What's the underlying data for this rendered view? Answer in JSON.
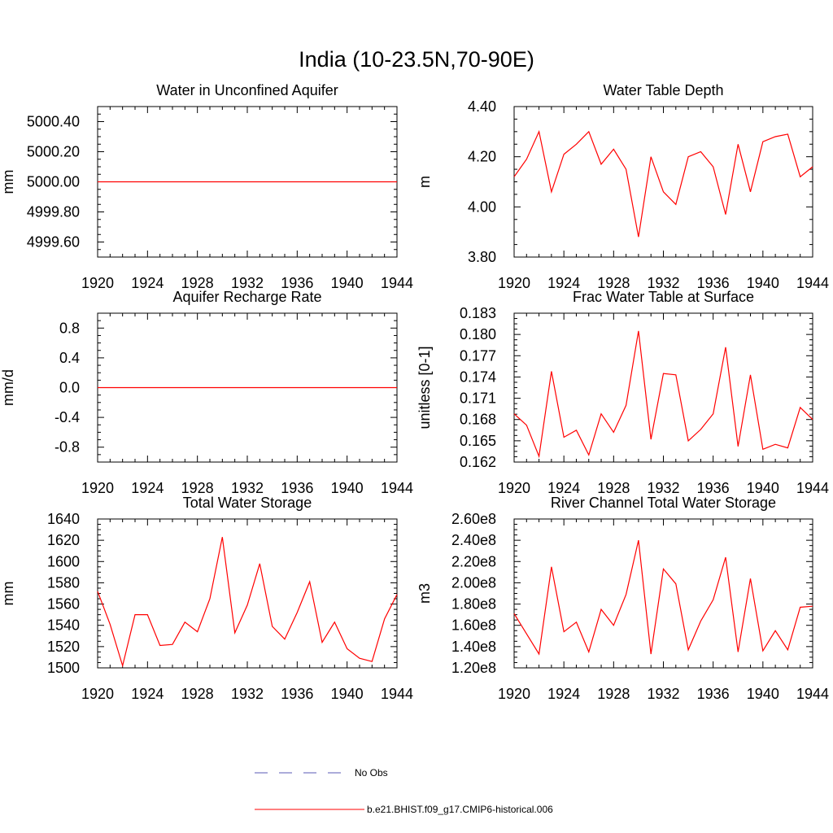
{
  "figure_title": "India (10-23.5N,70-90E)",
  "series_color": "#ff0000",
  "obs_color": "#5a5ab4",
  "legend": {
    "obs_label": "No Obs",
    "model_label": "b.e21.BHIST.f09_g17.CMIP6-historical.006"
  },
  "chart_data": [
    {
      "type": "line",
      "title": "Water in Unconfined Aquifer",
      "ylabel": "mm",
      "xlim": [
        1920,
        1944
      ],
      "ylim": [
        4999.5,
        5000.5
      ],
      "xticks": [
        "1920",
        "1924",
        "1928",
        "1932",
        "1936",
        "1940",
        "1944"
      ],
      "yticks": [
        "4999.60",
        "4999.80",
        "5000.00",
        "5000.20",
        "5000.40"
      ],
      "x": [
        1920,
        1921,
        1922,
        1923,
        1924,
        1925,
        1926,
        1927,
        1928,
        1929,
        1930,
        1931,
        1932,
        1933,
        1934,
        1935,
        1936,
        1937,
        1938,
        1939,
        1940,
        1941,
        1942,
        1943,
        1944
      ],
      "series": [
        {
          "name": "b.e21.BHIST.f09_g17.CMIP6-historical.006",
          "values": [
            5000,
            5000,
            5000,
            5000,
            5000,
            5000,
            5000,
            5000,
            5000,
            5000,
            5000,
            5000,
            5000,
            5000,
            5000,
            5000,
            5000,
            5000,
            5000,
            5000,
            5000,
            5000,
            5000,
            5000,
            5000
          ]
        }
      ]
    },
    {
      "type": "line",
      "title": "Water Table Depth",
      "ylabel": "m",
      "xlim": [
        1920,
        1944
      ],
      "ylim": [
        3.8,
        4.4
      ],
      "xticks": [
        "1920",
        "1924",
        "1928",
        "1932",
        "1936",
        "1940",
        "1944"
      ],
      "yticks": [
        "3.80",
        "4.00",
        "4.20",
        "4.40"
      ],
      "x": [
        1920,
        1921,
        1922,
        1923,
        1924,
        1925,
        1926,
        1927,
        1928,
        1929,
        1930,
        1931,
        1932,
        1933,
        1934,
        1935,
        1936,
        1937,
        1938,
        1939,
        1940,
        1941,
        1942,
        1943,
        1944
      ],
      "series": [
        {
          "name": "b.e21.BHIST.f09_g17.CMIP6-historical.006",
          "values": [
            4.12,
            4.19,
            4.3,
            4.06,
            4.21,
            4.25,
            4.3,
            4.17,
            4.23,
            4.15,
            3.88,
            4.2,
            4.06,
            4.01,
            4.2,
            4.22,
            4.16,
            3.97,
            4.25,
            4.06,
            4.26,
            4.28,
            4.29,
            4.12,
            4.16
          ]
        }
      ]
    },
    {
      "type": "line",
      "title": "Aquifer Recharge Rate",
      "ylabel": "mm/d",
      "xlim": [
        1920,
        1944
      ],
      "ylim": [
        -1.0,
        1.0
      ],
      "xticks": [
        "1920",
        "1924",
        "1928",
        "1932",
        "1936",
        "1940",
        "1944"
      ],
      "yticks": [
        "-0.8",
        "-0.4",
        "0.0",
        "0.4",
        "0.8"
      ],
      "x": [
        1920,
        1921,
        1922,
        1923,
        1924,
        1925,
        1926,
        1927,
        1928,
        1929,
        1930,
        1931,
        1932,
        1933,
        1934,
        1935,
        1936,
        1937,
        1938,
        1939,
        1940,
        1941,
        1942,
        1943,
        1944
      ],
      "series": [
        {
          "name": "b.e21.BHIST.f09_g17.CMIP6-historical.006",
          "values": [
            0,
            0,
            0,
            0,
            0,
            0,
            0,
            0,
            0,
            0,
            0,
            0,
            0,
            0,
            0,
            0,
            0,
            0,
            0,
            0,
            0,
            0,
            0,
            0,
            0
          ]
        }
      ]
    },
    {
      "type": "line",
      "title": "Frac Water Table at Surface",
      "ylabel": "unitless [0-1]",
      "xlim": [
        1920,
        1944
      ],
      "ylim": [
        0.162,
        0.183
      ],
      "xticks": [
        "1920",
        "1924",
        "1928",
        "1932",
        "1936",
        "1940",
        "1944"
      ],
      "yticks": [
        "0.162",
        "0.165",
        "0.168",
        "0.171",
        "0.174",
        "0.177",
        "0.180",
        "0.183"
      ],
      "x": [
        1920,
        1921,
        1922,
        1923,
        1924,
        1925,
        1926,
        1927,
        1928,
        1929,
        1930,
        1931,
        1932,
        1933,
        1934,
        1935,
        1936,
        1937,
        1938,
        1939,
        1940,
        1941,
        1942,
        1943,
        1944
      ],
      "series": [
        {
          "name": "b.e21.BHIST.f09_g17.CMIP6-historical.006",
          "values": [
            0.1688,
            0.1672,
            0.1628,
            0.1748,
            0.1655,
            0.1665,
            0.163,
            0.1688,
            0.1662,
            0.17,
            0.1805,
            0.1652,
            0.1745,
            0.1743,
            0.165,
            0.1666,
            0.1688,
            0.1782,
            0.1642,
            0.1743,
            0.1638,
            0.1645,
            0.164,
            0.1697,
            0.168
          ]
        }
      ]
    },
    {
      "type": "line",
      "title": "Total Water Storage",
      "ylabel": "mm",
      "xlim": [
        1920,
        1944
      ],
      "ylim": [
        1500,
        1640
      ],
      "xticks": [
        "1920",
        "1924",
        "1928",
        "1932",
        "1936",
        "1940",
        "1944"
      ],
      "yticks": [
        "1500",
        "1520",
        "1540",
        "1560",
        "1580",
        "1600",
        "1620",
        "1640"
      ],
      "x": [
        1920,
        1921,
        1922,
        1923,
        1924,
        1925,
        1926,
        1927,
        1928,
        1929,
        1930,
        1931,
        1932,
        1933,
        1934,
        1935,
        1936,
        1937,
        1938,
        1939,
        1940,
        1941,
        1942,
        1943,
        1944
      ],
      "series": [
        {
          "name": "b.e21.BHIST.f09_g17.CMIP6-historical.006",
          "values": [
            1572,
            1541,
            1502,
            1550,
            1550,
            1521,
            1522,
            1543,
            1534,
            1565,
            1623,
            1533,
            1559,
            1598,
            1539,
            1527,
            1552,
            1581,
            1524,
            1543,
            1518,
            1509,
            1506,
            1546,
            1569
          ]
        }
      ]
    },
    {
      "type": "line",
      "title": "River Channel Total Water Storage",
      "ylabel": "m3",
      "xlim": [
        1920,
        1944
      ],
      "ylim": [
        120000000,
        260000000
      ],
      "xticks": [
        "1920",
        "1924",
        "1928",
        "1932",
        "1936",
        "1940",
        "1944"
      ],
      "yticks": [
        "1.20e8",
        "1.40e8",
        "1.60e8",
        "1.80e8",
        "2.00e8",
        "2.20e8",
        "2.40e8",
        "2.60e8"
      ],
      "x": [
        1920,
        1921,
        1922,
        1923,
        1924,
        1925,
        1926,
        1927,
        1928,
        1929,
        1930,
        1931,
        1932,
        1933,
        1934,
        1935,
        1936,
        1937,
        1938,
        1939,
        1940,
        1941,
        1942,
        1943,
        1944
      ],
      "series": [
        {
          "name": "b.e21.BHIST.f09_g17.CMIP6-historical.006",
          "values": [
            171000000,
            152000000,
            133000000,
            215000000,
            154000000,
            163000000,
            135000000,
            175000000,
            160000000,
            189000000,
            240000000,
            133000000,
            213000000,
            199000000,
            137000000,
            164000000,
            184000000,
            224000000,
            135000000,
            204000000,
            136000000,
            155000000,
            137000000,
            177000000,
            178000000
          ]
        }
      ]
    }
  ]
}
